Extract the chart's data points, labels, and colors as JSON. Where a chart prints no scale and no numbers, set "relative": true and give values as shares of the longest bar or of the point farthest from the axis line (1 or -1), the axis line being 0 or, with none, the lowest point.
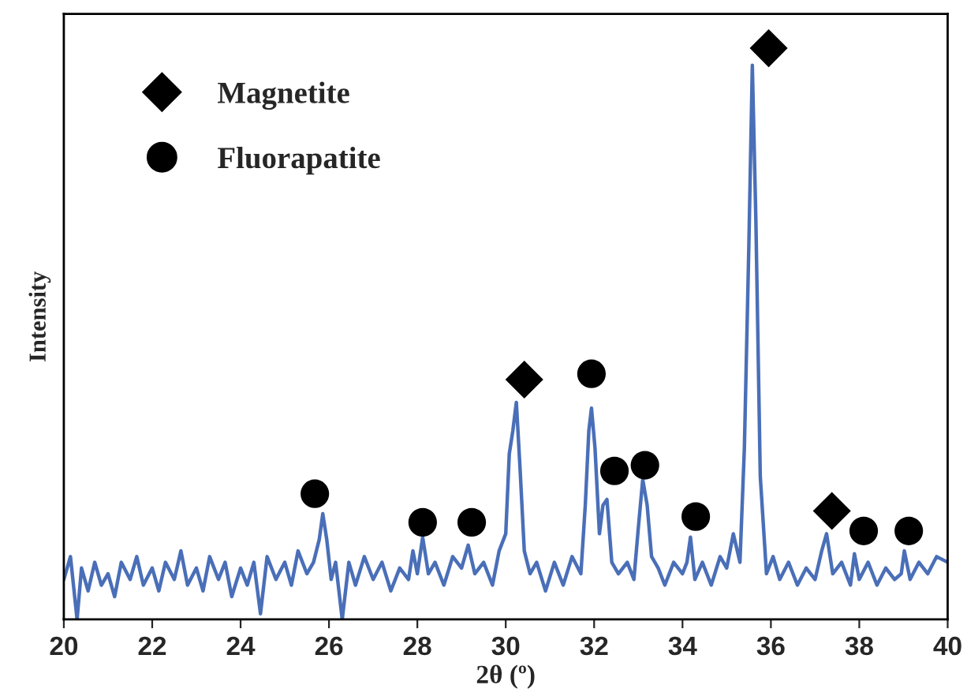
{
  "chart_data": {
    "type": "line",
    "relative": true,
    "xlabel": "2θ (º)",
    "ylabel": "Intensity",
    "xlim": [
      20,
      40
    ],
    "xticks": [
      20,
      22,
      24,
      26,
      28,
      30,
      32,
      34,
      36,
      38,
      40
    ],
    "legend": "top left",
    "grid": false,
    "tick_labels": "x",
    "series": [
      {
        "color": "#4a6fb8",
        "marker": "none",
        "x": [
          20.0,
          20.15,
          20.3,
          20.4,
          20.55,
          20.7,
          20.85,
          21.0,
          21.15,
          21.3,
          21.5,
          21.65,
          21.8,
          22.0,
          22.15,
          22.3,
          22.5,
          22.65,
          22.8,
          23.0,
          23.15,
          23.3,
          23.5,
          23.65,
          23.8,
          24.0,
          24.15,
          24.3,
          24.45,
          24.6,
          24.8,
          25.0,
          25.15,
          25.3,
          25.5,
          25.65,
          25.78,
          25.86,
          25.95,
          26.05,
          26.15,
          26.3,
          26.45,
          26.6,
          26.8,
          27.0,
          27.2,
          27.4,
          27.6,
          27.8,
          27.9,
          28.0,
          28.12,
          28.25,
          28.4,
          28.6,
          28.8,
          29.0,
          29.15,
          29.3,
          29.5,
          29.7,
          29.85,
          30.0,
          30.08,
          30.16,
          30.24,
          30.32,
          30.42,
          30.55,
          30.7,
          30.9,
          31.1,
          31.3,
          31.5,
          31.7,
          31.8,
          31.88,
          31.94,
          32.02,
          32.12,
          32.2,
          32.29,
          32.4,
          32.55,
          32.75,
          32.9,
          33.0,
          33.1,
          33.2,
          33.3,
          33.45,
          33.6,
          33.8,
          34.0,
          34.1,
          34.18,
          34.28,
          34.45,
          34.65,
          34.85,
          35.0,
          35.15,
          35.3,
          35.4,
          35.5,
          35.58,
          35.66,
          35.76,
          35.9,
          36.05,
          36.2,
          36.4,
          36.6,
          36.8,
          37.0,
          37.15,
          37.26,
          37.4,
          37.6,
          37.8,
          37.89,
          38.0,
          38.2,
          38.4,
          38.6,
          38.8,
          38.95,
          39.02,
          39.15,
          39.35,
          39.55,
          39.75,
          40.0
        ],
        "values": [
          0.07,
          0.11,
          0.0,
          0.09,
          0.05,
          0.1,
          0.06,
          0.08,
          0.04,
          0.1,
          0.07,
          0.11,
          0.06,
          0.09,
          0.05,
          0.1,
          0.07,
          0.12,
          0.06,
          0.09,
          0.05,
          0.11,
          0.07,
          0.1,
          0.04,
          0.09,
          0.06,
          0.1,
          0.01,
          0.11,
          0.07,
          0.1,
          0.06,
          0.12,
          0.08,
          0.1,
          0.14,
          0.185,
          0.14,
          0.07,
          0.1,
          0.0,
          0.1,
          0.06,
          0.11,
          0.07,
          0.1,
          0.05,
          0.09,
          0.07,
          0.12,
          0.08,
          0.144,
          0.08,
          0.1,
          0.06,
          0.11,
          0.09,
          0.13,
          0.08,
          0.1,
          0.06,
          0.12,
          0.15,
          0.29,
          0.33,
          0.38,
          0.27,
          0.12,
          0.08,
          0.1,
          0.05,
          0.1,
          0.06,
          0.11,
          0.08,
          0.2,
          0.33,
          0.37,
          0.3,
          0.15,
          0.2,
          0.21,
          0.1,
          0.08,
          0.1,
          0.07,
          0.16,
          0.245,
          0.2,
          0.11,
          0.09,
          0.06,
          0.1,
          0.08,
          0.1,
          0.144,
          0.07,
          0.1,
          0.06,
          0.11,
          0.09,
          0.15,
          0.1,
          0.3,
          0.65,
          0.97,
          0.7,
          0.25,
          0.08,
          0.11,
          0.07,
          0.1,
          0.06,
          0.09,
          0.07,
          0.12,
          0.15,
          0.08,
          0.1,
          0.06,
          0.115,
          0.07,
          0.1,
          0.06,
          0.09,
          0.07,
          0.08,
          0.12,
          0.07,
          0.1,
          0.08,
          0.11,
          0.1
        ]
      },
      {
        "type": "scatter",
        "name": "Magnetite",
        "color": "#000000",
        "marker": "diamond",
        "x": [
          30.42,
          35.95,
          37.38
        ],
        "values": [
          0.42,
          1.0,
          0.19
        ]
      },
      {
        "type": "scatter",
        "name": "Fluorapatite",
        "color": "#000000",
        "marker": "circle",
        "x": [
          25.68,
          28.12,
          29.23,
          31.94,
          32.46,
          33.15,
          34.3,
          38.1,
          39.12
        ],
        "values": [
          0.22,
          0.17,
          0.17,
          0.43,
          0.26,
          0.27,
          0.18,
          0.155,
          0.155
        ]
      }
    ]
  }
}
